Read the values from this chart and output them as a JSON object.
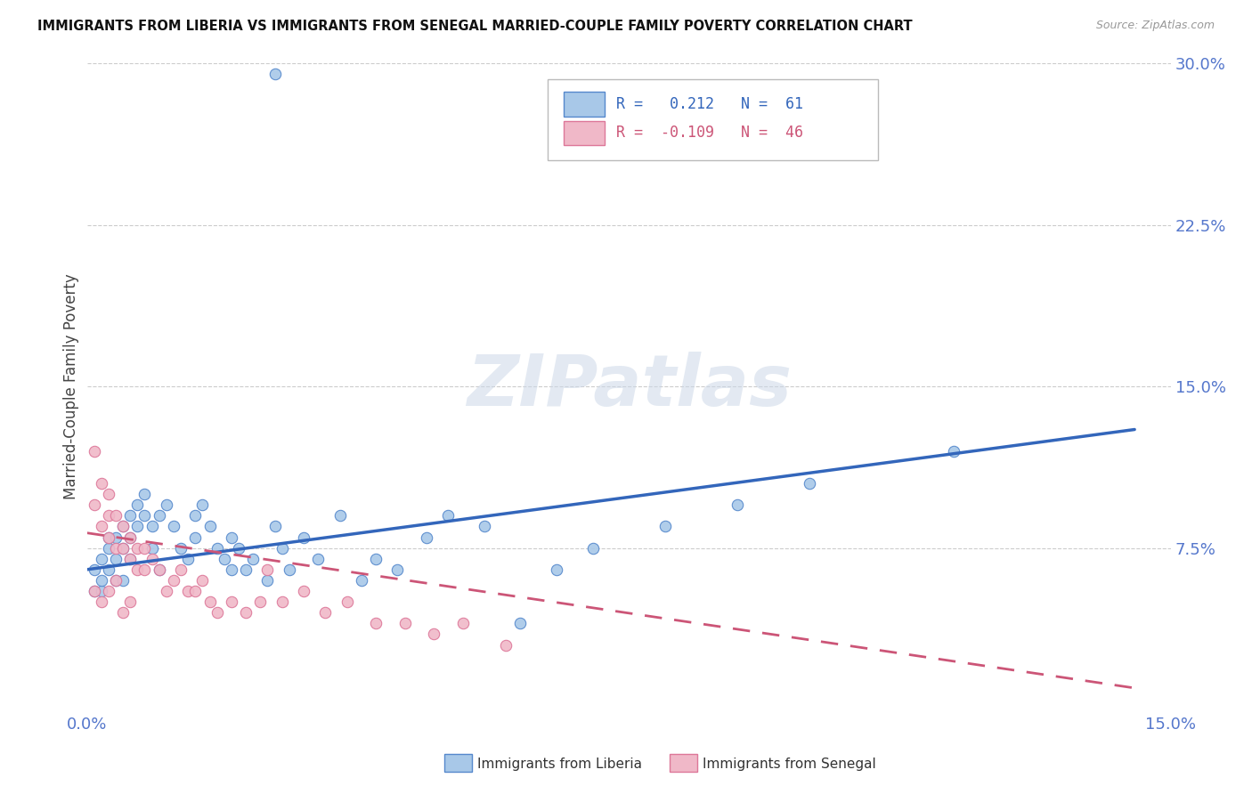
{
  "title": "IMMIGRANTS FROM LIBERIA VS IMMIGRANTS FROM SENEGAL MARRIED-COUPLE FAMILY POVERTY CORRELATION CHART",
  "source": "Source: ZipAtlas.com",
  "ylabel": "Married-Couple Family Poverty",
  "watermark": "ZIPatlas",
  "xlim": [
    0.0,
    0.15
  ],
  "ylim": [
    0.0,
    0.3
  ],
  "liberia_color": "#a8c8e8",
  "liberia_edge_color": "#5588cc",
  "liberia_line_color": "#3366bb",
  "senegal_color": "#f0b8c8",
  "senegal_edge_color": "#dd7799",
  "senegal_line_color": "#cc5577",
  "legend_liberia_r": "0.212",
  "legend_liberia_n": "61",
  "legend_senegal_r": "-0.109",
  "legend_senegal_n": "46",
  "liberia_x": [
    0.001,
    0.001,
    0.002,
    0.002,
    0.002,
    0.003,
    0.003,
    0.003,
    0.004,
    0.004,
    0.004,
    0.005,
    0.005,
    0.005,
    0.006,
    0.006,
    0.006,
    0.007,
    0.007,
    0.008,
    0.008,
    0.009,
    0.009,
    0.01,
    0.01,
    0.011,
    0.012,
    0.013,
    0.014,
    0.015,
    0.015,
    0.016,
    0.017,
    0.018,
    0.019,
    0.02,
    0.02,
    0.021,
    0.022,
    0.023,
    0.025,
    0.026,
    0.027,
    0.028,
    0.03,
    0.032,
    0.035,
    0.038,
    0.04,
    0.043,
    0.047,
    0.05,
    0.055,
    0.06,
    0.065,
    0.07,
    0.08,
    0.09,
    0.1,
    0.12,
    0.026
  ],
  "liberia_y": [
    0.065,
    0.055,
    0.07,
    0.055,
    0.06,
    0.075,
    0.065,
    0.08,
    0.08,
    0.07,
    0.06,
    0.085,
    0.075,
    0.06,
    0.09,
    0.08,
    0.07,
    0.095,
    0.085,
    0.1,
    0.09,
    0.085,
    0.075,
    0.09,
    0.065,
    0.095,
    0.085,
    0.075,
    0.07,
    0.09,
    0.08,
    0.095,
    0.085,
    0.075,
    0.07,
    0.08,
    0.065,
    0.075,
    0.065,
    0.07,
    0.06,
    0.085,
    0.075,
    0.065,
    0.08,
    0.07,
    0.09,
    0.06,
    0.07,
    0.065,
    0.08,
    0.09,
    0.085,
    0.04,
    0.065,
    0.075,
    0.085,
    0.095,
    0.105,
    0.12,
    0.295
  ],
  "senegal_x": [
    0.001,
    0.001,
    0.002,
    0.002,
    0.003,
    0.003,
    0.003,
    0.004,
    0.004,
    0.005,
    0.005,
    0.006,
    0.006,
    0.007,
    0.007,
    0.008,
    0.008,
    0.009,
    0.01,
    0.011,
    0.012,
    0.013,
    0.014,
    0.015,
    0.016,
    0.017,
    0.018,
    0.02,
    0.022,
    0.024,
    0.025,
    0.027,
    0.03,
    0.033,
    0.036,
    0.04,
    0.044,
    0.048,
    0.052,
    0.058,
    0.001,
    0.002,
    0.003,
    0.004,
    0.005,
    0.006
  ],
  "senegal_y": [
    0.12,
    0.095,
    0.105,
    0.085,
    0.1,
    0.09,
    0.08,
    0.09,
    0.075,
    0.085,
    0.075,
    0.08,
    0.07,
    0.075,
    0.065,
    0.075,
    0.065,
    0.07,
    0.065,
    0.055,
    0.06,
    0.065,
    0.055,
    0.055,
    0.06,
    0.05,
    0.045,
    0.05,
    0.045,
    0.05,
    0.065,
    0.05,
    0.055,
    0.045,
    0.05,
    0.04,
    0.04,
    0.035,
    0.04,
    0.03,
    0.055,
    0.05,
    0.055,
    0.06,
    0.045,
    0.05
  ],
  "liberia_line_x0": 0.0,
  "liberia_line_x1": 0.145,
  "liberia_line_y0": 0.065,
  "liberia_line_y1": 0.13,
  "senegal_line_x0": 0.0,
  "senegal_line_x1": 0.145,
  "senegal_line_y0": 0.082,
  "senegal_line_y1": 0.01
}
